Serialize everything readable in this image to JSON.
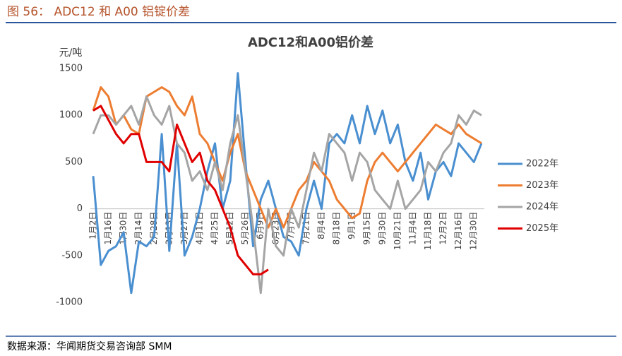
{
  "header": {
    "title": "图 56： ADC12 和 A00 铝锭价差"
  },
  "footer": {
    "source": "数据来源：华闻期货交易咨询部 SMM"
  },
  "chart_data": {
    "type": "line",
    "title": "ADC12和A00铝价差",
    "y_label": "元/吨",
    "categories": [
      "1月2日",
      null,
      "1月16日",
      null,
      "1月30日",
      null,
      "2月14日",
      null,
      "2月28日",
      null,
      "3月13日",
      null,
      "3月27日",
      null,
      "4月11日",
      null,
      "4月25日",
      null,
      "5月12日",
      null,
      "5月26日",
      null,
      "6月9日",
      null,
      "6月23日",
      null,
      "7月7日",
      null,
      "7月21日",
      null,
      "8月4日",
      null,
      "8月18日",
      null,
      "9月1日",
      null,
      "9月15日",
      null,
      "9月30日",
      null,
      "10月21日",
      null,
      "11月4日",
      null,
      "11月18日",
      null,
      "12月2日",
      null,
      "12月16日",
      null,
      "12月30日",
      null
    ],
    "ylim": [
      -1000,
      1500
    ],
    "yticks": [
      -1000,
      -500,
      0,
      500,
      1000,
      1500
    ],
    "grid": false,
    "legend": "right",
    "series": [
      {
        "name": "2022年",
        "color": "#4a8fd0",
        "values": [
          350,
          -600,
          -450,
          -400,
          -250,
          -900,
          -350,
          -400,
          -300,
          800,
          -450,
          700,
          -500,
          -300,
          0,
          400,
          700,
          0,
          300,
          1450,
          500,
          -400,
          100,
          300,
          0,
          -300,
          -350,
          -500,
          0,
          300,
          0,
          700,
          800,
          700,
          1000,
          700,
          1100,
          800,
          1050,
          700,
          900,
          500,
          300,
          600,
          100,
          400,
          500,
          350,
          700,
          600,
          500,
          700
        ]
      },
      {
        "name": "2023年",
        "color": "#ed7d31",
        "values": [
          1050,
          1300,
          1200,
          900,
          1000,
          850,
          800,
          1200,
          1250,
          1300,
          1250,
          1100,
          1000,
          1200,
          800,
          700,
          500,
          300,
          600,
          800,
          400,
          200,
          0,
          -200,
          0,
          -200,
          0,
          200,
          300,
          500,
          400,
          300,
          100,
          0,
          -100,
          -50,
          300,
          500,
          600,
          500,
          400,
          500,
          600,
          700,
          800,
          900,
          850,
          800,
          900,
          800,
          750,
          700
        ]
      },
      {
        "name": "2024年",
        "color": "#a5a5a5",
        "values": [
          800,
          1000,
          1000,
          900,
          1000,
          1100,
          900,
          1200,
          1000,
          900,
          1100,
          700,
          600,
          300,
          400,
          200,
          500,
          200,
          700,
          1000,
          400,
          -200,
          -900,
          0,
          -400,
          -500,
          0,
          -200,
          200,
          600,
          400,
          800,
          700,
          600,
          300,
          600,
          500,
          200,
          100,
          0,
          300,
          0,
          100,
          200,
          500,
          400,
          600,
          700,
          1000,
          900,
          1050,
          1000
        ]
      },
      {
        "name": "2025年",
        "color": "#e00000",
        "values": [
          1050,
          1100,
          950,
          800,
          700,
          800,
          800,
          500,
          500,
          500,
          400,
          900,
          700,
          500,
          600,
          300,
          200,
          0,
          -200,
          -500,
          -600,
          -700,
          -700,
          -650,
          null,
          null,
          null,
          null,
          null,
          null,
          null,
          null,
          null,
          null,
          null,
          null,
          null,
          null,
          null,
          null,
          null,
          null,
          null,
          null,
          null,
          null,
          null,
          null,
          null,
          null,
          null,
          null
        ]
      }
    ]
  }
}
